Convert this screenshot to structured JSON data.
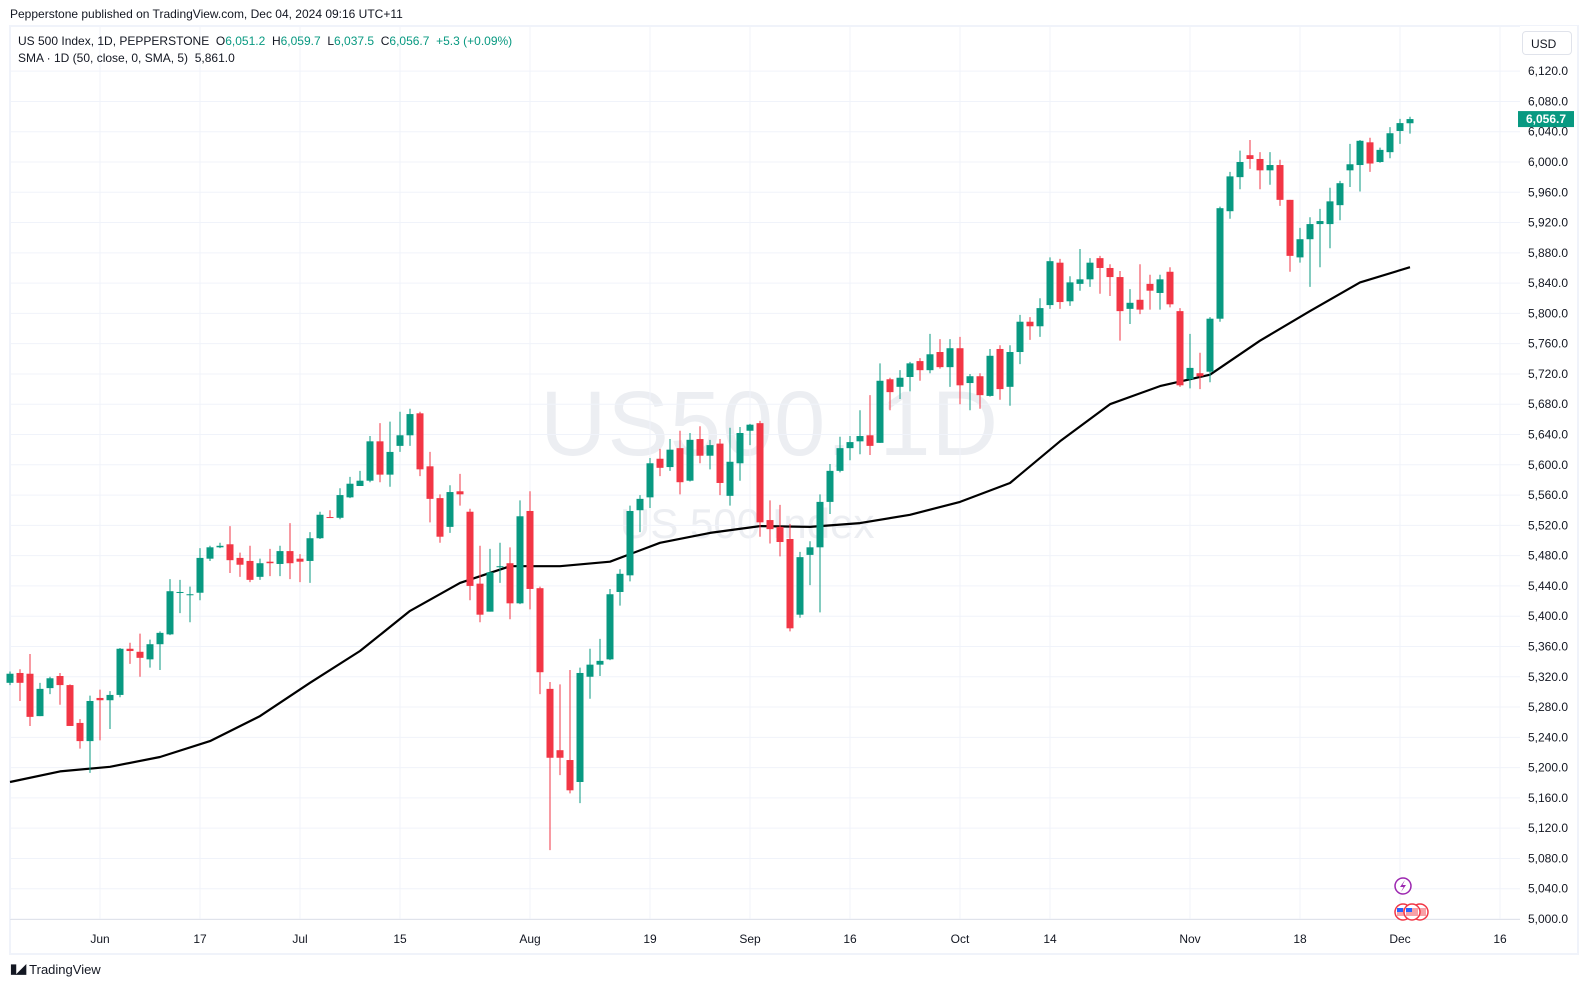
{
  "publish_line": "Pepperstone published on TradingView.com, Dec 04, 2024 09:16 UTC+11",
  "legend": {
    "symbol": "US 500 Index, 1D, PEPPERSTONE",
    "o_label": "O",
    "o": "6,051.2",
    "h_label": "H",
    "h": "6,059.7",
    "l_label": "L",
    "l": "6,037.5",
    "c_label": "C",
    "c": "6,056.7",
    "change": "+5.3 (+0.09%)",
    "sma_label": "SMA · 1D (50, close, 0, SMA, 5)",
    "sma_value": "5,861.0"
  },
  "currency_button": "USD",
  "watermark": {
    "main": "US500, 1D",
    "sub": "US 500 Index"
  },
  "brand": "TradingView",
  "colors": {
    "up": "#089981",
    "down": "#f23645",
    "sma": "#000000",
    "grid": "#f0f3fa",
    "last_price_bg": "#089981"
  },
  "chart_data": {
    "type": "candlestick",
    "title": "US 500 Index, 1D, PEPPERSTONE",
    "ylim": [
      5000,
      6140
    ],
    "y_ticks": [
      5000,
      5040,
      5080,
      5120,
      5160,
      5200,
      5240,
      5280,
      5320,
      5360,
      5400,
      5440,
      5480,
      5520,
      5560,
      5600,
      5640,
      5680,
      5720,
      5760,
      5800,
      5840,
      5880,
      5920,
      5960,
      6000,
      6040,
      6080,
      6120
    ],
    "y_tick_labels": [
      "5,000.0",
      "5,040.0",
      "5,080.0",
      "5,120.0",
      "5,160.0",
      "5,200.0",
      "5,240.0",
      "5,280.0",
      "5,320.0",
      "5,360.0",
      "5,400.0",
      "5,440.0",
      "5,480.0",
      "5,520.0",
      "5,560.0",
      "5,600.0",
      "5,640.0",
      "5,680.0",
      "5,720.0",
      "5,760.0",
      "5,800.0",
      "5,840.0",
      "5,880.0",
      "5,920.0",
      "5,960.0",
      "6,000.0",
      "6,040.0",
      "6,080.0",
      "6,120.0"
    ],
    "x_ticks": [
      {
        "label": "Jun",
        "date": "2024-06-03"
      },
      {
        "label": "17",
        "date": "2024-06-17"
      },
      {
        "label": "Jul",
        "date": "2024-07-01"
      },
      {
        "label": "15",
        "date": "2024-07-15"
      },
      {
        "label": "Aug",
        "date": "2024-08-01"
      },
      {
        "label": "19",
        "date": "2024-08-19"
      },
      {
        "label": "Sep",
        "date": "2024-09-02"
      },
      {
        "label": "16",
        "date": "2024-09-16"
      },
      {
        "label": "Oct",
        "date": "2024-10-01"
      },
      {
        "label": "14",
        "date": "2024-10-14"
      },
      {
        "label": "Nov",
        "date": "2024-11-01"
      },
      {
        "label": "18",
        "date": "2024-11-18"
      },
      {
        "label": "Dec",
        "date": "2024-12-02"
      },
      {
        "label": "16",
        "date": "2024-12-16"
      }
    ],
    "last_price": 6056.7,
    "last_price_label": "6,056.7",
    "grid": true,
    "candles_columns": [
      "date",
      "open",
      "high",
      "low",
      "close"
    ],
    "candles": [
      [
        "2024-05-21",
        5312,
        5327,
        5309,
        5324
      ],
      [
        "2024-05-22",
        5325,
        5330,
        5288,
        5312
      ],
      [
        "2024-05-23",
        5324,
        5350,
        5255,
        5267
      ],
      [
        "2024-05-24",
        5268,
        5312,
        5268,
        5304
      ],
      [
        "2024-05-27",
        5305,
        5320,
        5297,
        5318
      ],
      [
        "2024-05-28",
        5321,
        5325,
        5283,
        5309
      ],
      [
        "2024-05-29",
        5309,
        5310,
        5255,
        5255
      ],
      [
        "2024-05-30",
        5259,
        5264,
        5225,
        5235
      ],
      [
        "2024-05-31",
        5235,
        5295,
        5193,
        5288
      ],
      [
        "2024-06-03",
        5292,
        5303,
        5236,
        5289
      ],
      [
        "2024-06-04",
        5289,
        5301,
        5251,
        5296
      ],
      [
        "2024-06-05",
        5296,
        5358,
        5293,
        5357
      ],
      [
        "2024-06-06",
        5357,
        5365,
        5337,
        5354
      ],
      [
        "2024-06-07",
        5353,
        5377,
        5320,
        5345
      ],
      [
        "2024-06-10",
        5343,
        5369,
        5332,
        5363
      ],
      [
        "2024-06-11",
        5363,
        5380,
        5329,
        5378
      ],
      [
        "2024-06-12",
        5376,
        5449,
        5375,
        5433
      ],
      [
        "2024-06-13",
        5431,
        5448,
        5404,
        5432
      ],
      [
        "2024-06-14",
        5428,
        5439,
        5392,
        5429
      ],
      [
        "2024-06-17",
        5431,
        5490,
        5421,
        5477
      ],
      [
        "2024-06-18",
        5476,
        5493,
        5473,
        5491
      ],
      [
        "2024-06-19",
        5491,
        5497,
        5490,
        5493
      ],
      [
        "2024-06-20",
        5495,
        5519,
        5457,
        5474
      ],
      [
        "2024-06-21",
        5477,
        5484,
        5452,
        5468
      ],
      [
        "2024-06-24",
        5473,
        5493,
        5445,
        5448
      ],
      [
        "2024-06-25",
        5452,
        5476,
        5448,
        5470
      ],
      [
        "2024-06-26",
        5472,
        5489,
        5453,
        5470
      ],
      [
        "2024-06-27",
        5469,
        5493,
        5453,
        5486
      ],
      [
        "2024-06-28",
        5486,
        5523,
        5449,
        5470
      ],
      [
        "2024-07-01",
        5476,
        5482,
        5445,
        5472
      ],
      [
        "2024-07-02",
        5473,
        5511,
        5444,
        5503
      ],
      [
        "2024-07-03",
        5503,
        5538,
        5502,
        5534
      ],
      [
        "2024-07-04",
        5531,
        5540,
        5530,
        5530
      ],
      [
        "2024-07-05",
        5530,
        5569,
        5528,
        5560
      ],
      [
        "2024-07-08",
        5557,
        5584,
        5556,
        5575
      ],
      [
        "2024-07-09",
        5572,
        5592,
        5572,
        5579
      ],
      [
        "2024-07-10",
        5579,
        5638,
        5577,
        5631
      ],
      [
        "2024-07-11",
        5631,
        5655,
        5577,
        5587
      ],
      [
        "2024-07-12",
        5587,
        5657,
        5571,
        5617
      ],
      [
        "2024-07-15",
        5625,
        5670,
        5617,
        5639
      ],
      [
        "2024-07-16",
        5639,
        5674,
        5625,
        5667
      ],
      [
        "2024-07-17",
        5668,
        5670,
        5585,
        5594
      ],
      [
        "2024-07-18",
        5598,
        5617,
        5524,
        5555
      ],
      [
        "2024-07-19",
        5556,
        5561,
        5497,
        5505
      ],
      [
        "2024-07-22",
        5518,
        5573,
        5510,
        5564
      ],
      [
        "2024-07-23",
        5565,
        5588,
        5546,
        5561
      ],
      [
        "2024-07-24",
        5538,
        5542,
        5421,
        5440
      ],
      [
        "2024-07-25",
        5443,
        5493,
        5392,
        5402
      ],
      [
        "2024-07-26",
        5406,
        5489,
        5406,
        5458
      ],
      [
        "2024-07-29",
        5465,
        5497,
        5444,
        5466
      ],
      [
        "2024-07-30",
        5470,
        5491,
        5396,
        5417
      ],
      [
        "2024-07-31",
        5417,
        5553,
        5416,
        5532
      ],
      [
        "2024-08-01",
        5539,
        5565,
        5409,
        5436
      ],
      [
        "2024-08-02",
        5437,
        5439,
        5297,
        5326
      ],
      [
        "2024-08-05",
        5304,
        5313,
        5091,
        5213
      ],
      [
        "2024-08-06",
        5223,
        5310,
        5190,
        5213
      ],
      [
        "2024-08-07",
        5210,
        5329,
        5166,
        5170
      ],
      [
        "2024-08-08",
        5181,
        5332,
        5153,
        5325
      ],
      [
        "2024-08-09",
        5320,
        5357,
        5291,
        5336
      ],
      [
        "2024-08-12",
        5336,
        5370,
        5321,
        5341
      ],
      [
        "2024-08-13",
        5343,
        5436,
        5342,
        5429
      ],
      [
        "2024-08-14",
        5432,
        5462,
        5414,
        5456
      ],
      [
        "2024-08-15",
        5454,
        5546,
        5446,
        5539
      ],
      [
        "2024-08-16",
        5540,
        5560,
        5511,
        5555
      ],
      [
        "2024-08-19",
        5557,
        5609,
        5543,
        5602
      ],
      [
        "2024-08-20",
        5608,
        5621,
        5585,
        5596
      ],
      [
        "2024-08-21",
        5597,
        5634,
        5592,
        5620
      ],
      [
        "2024-08-22",
        5622,
        5645,
        5561,
        5577
      ],
      [
        "2024-08-23",
        5579,
        5642,
        5578,
        5633
      ],
      [
        "2024-08-26",
        5634,
        5651,
        5602,
        5612
      ],
      [
        "2024-08-27",
        5612,
        5633,
        5594,
        5626
      ],
      [
        "2024-08-28",
        5628,
        5634,
        5560,
        5576
      ],
      [
        "2024-08-29",
        5559,
        5649,
        5546,
        5604
      ],
      [
        "2024-08-30",
        5602,
        5650,
        5579,
        5642
      ],
      [
        "2024-09-02",
        5645,
        5654,
        5626,
        5653
      ],
      [
        "2024-09-03",
        5655,
        5658,
        5505,
        5524
      ],
      [
        "2024-09-04",
        5527,
        5553,
        5496,
        5515
      ],
      [
        "2024-09-05",
        5518,
        5547,
        5479,
        5498
      ],
      [
        "2024-09-06",
        5502,
        5522,
        5380,
        5384
      ],
      [
        "2024-09-09",
        5402,
        5485,
        5398,
        5478
      ],
      [
        "2024-09-10",
        5481,
        5499,
        5441,
        5491
      ],
      [
        "2024-09-11",
        5491,
        5561,
        5405,
        5551
      ],
      [
        "2024-09-12",
        5551,
        5601,
        5535,
        5592
      ],
      [
        "2024-09-13",
        5592,
        5637,
        5590,
        5622
      ],
      [
        "2024-09-16",
        5622,
        5638,
        5606,
        5630
      ],
      [
        "2024-09-17",
        5631,
        5672,
        5614,
        5638
      ],
      [
        "2024-09-18",
        5639,
        5692,
        5613,
        5625
      ],
      [
        "2024-09-19",
        5629,
        5734,
        5629,
        5711
      ],
      [
        "2024-09-20",
        5713,
        5715,
        5672,
        5696
      ],
      [
        "2024-09-23",
        5703,
        5725,
        5687,
        5715
      ],
      [
        "2024-09-24",
        5716,
        5736,
        5697,
        5734
      ],
      [
        "2024-09-25",
        5737,
        5741,
        5711,
        5725
      ],
      [
        "2024-09-26",
        5725,
        5773,
        5721,
        5746
      ],
      [
        "2024-09-27",
        5749,
        5766,
        5727,
        5729
      ],
      [
        "2024-09-30",
        5729,
        5766,
        5703,
        5754
      ],
      [
        "2024-10-01",
        5754,
        5769,
        5680,
        5705
      ],
      [
        "2024-10-02",
        5708,
        5720,
        5672,
        5717
      ],
      [
        "2024-10-03",
        5717,
        5721,
        5674,
        5692
      ],
      [
        "2024-10-04",
        5691,
        5753,
        5690,
        5744
      ],
      [
        "2024-10-07",
        5753,
        5758,
        5686,
        5700
      ],
      [
        "2024-10-08",
        5703,
        5758,
        5678,
        5749
      ],
      [
        "2024-10-09",
        5749,
        5798,
        5733,
        5789
      ],
      [
        "2024-10-10",
        5789,
        5795,
        5765,
        5783
      ],
      [
        "2024-10-11",
        5783,
        5820,
        5769,
        5807
      ],
      [
        "2024-10-14",
        5811,
        5874,
        5806,
        5869
      ],
      [
        "2024-10-15",
        5867,
        5872,
        5806,
        5815
      ],
      [
        "2024-10-16",
        5816,
        5849,
        5810,
        5841
      ],
      [
        "2024-10-17",
        5839,
        5885,
        5830,
        5845
      ],
      [
        "2024-10-18",
        5845,
        5873,
        5835,
        5867
      ],
      [
        "2024-10-21",
        5873,
        5876,
        5826,
        5860
      ],
      [
        "2024-10-22",
        5860,
        5865,
        5823,
        5848
      ],
      [
        "2024-10-23",
        5848,
        5856,
        5764,
        5803
      ],
      [
        "2024-10-24",
        5806,
        5832,
        5786,
        5814
      ],
      [
        "2024-10-25",
        5818,
        5865,
        5799,
        5805
      ],
      [
        "2024-10-28",
        5839,
        5851,
        5805,
        5830
      ],
      [
        "2024-10-29",
        5827,
        5851,
        5805,
        5845
      ],
      [
        "2024-10-30",
        5855,
        5861,
        5808,
        5812
      ],
      [
        "2024-10-31",
        5803,
        5807,
        5703,
        5705
      ],
      [
        "2024-11-01",
        5713,
        5773,
        5701,
        5728
      ],
      [
        "2024-11-04",
        5721,
        5748,
        5700,
        5717
      ],
      [
        "2024-11-05",
        5723,
        5795,
        5709,
        5793
      ],
      [
        "2024-11-06",
        5793,
        5941,
        5789,
        5939
      ],
      [
        "2024-11-07",
        5935,
        5987,
        5925,
        5981
      ],
      [
        "2024-11-08",
        5980,
        6015,
        5964,
        6000
      ],
      [
        "2024-11-11",
        6009,
        6029,
        5991,
        6004
      ],
      [
        "2024-11-12",
        6004,
        6013,
        5964,
        5989
      ],
      [
        "2024-11-13",
        5989,
        6013,
        5970,
        5996
      ],
      [
        "2024-11-14",
        5996,
        6003,
        5942,
        5950
      ],
      [
        "2024-11-15",
        5950,
        5950,
        5855,
        5876
      ],
      [
        "2024-11-18",
        5874,
        5913,
        5867,
        5898
      ],
      [
        "2024-11-19",
        5898,
        5927,
        5835,
        5918
      ],
      [
        "2024-11-20",
        5918,
        5938,
        5861,
        5922
      ],
      [
        "2024-11-21",
        5918,
        5966,
        5886,
        5948
      ],
      [
        "2024-11-22",
        5943,
        5975,
        5923,
        5972
      ],
      [
        "2024-11-25",
        5989,
        6024,
        5967,
        5997
      ],
      [
        "2024-11-26",
        5996,
        6029,
        5961,
        6028
      ],
      [
        "2024-11-27",
        6026,
        6032,
        5987,
        5998
      ],
      [
        "2024-11-28",
        6000,
        6019,
        5999,
        6016
      ],
      [
        "2024-11-29",
        6013,
        6046,
        6005,
        6038
      ],
      [
        "2024-12-02",
        6041,
        6057,
        6024,
        6051.4
      ],
      [
        "2024-12-03",
        6051.2,
        6059.7,
        6037.5,
        6056.7
      ]
    ],
    "series": [
      {
        "name": "SMA · 1D (50, close, 0, SMA, 5)",
        "type": "line",
        "points": [
          [
            "2024-05-21",
            5181
          ],
          [
            "2024-05-28",
            5195
          ],
          [
            "2024-06-04",
            5201
          ],
          [
            "2024-06-11",
            5214
          ],
          [
            "2024-06-18",
            5235
          ],
          [
            "2024-06-25",
            5268
          ],
          [
            "2024-07-02",
            5312
          ],
          [
            "2024-07-09",
            5354
          ],
          [
            "2024-07-16",
            5407
          ],
          [
            "2024-07-23",
            5444
          ],
          [
            "2024-07-30",
            5466
          ],
          [
            "2024-08-06",
            5466
          ],
          [
            "2024-08-13",
            5472
          ],
          [
            "2024-08-20",
            5497
          ],
          [
            "2024-08-27",
            5510
          ],
          [
            "2024-09-03",
            5519
          ],
          [
            "2024-09-10",
            5518
          ],
          [
            "2024-09-17",
            5523
          ],
          [
            "2024-09-24",
            5534
          ],
          [
            "2024-10-01",
            5551
          ],
          [
            "2024-10-08",
            5576
          ],
          [
            "2024-10-15",
            5631
          ],
          [
            "2024-10-22",
            5680
          ],
          [
            "2024-10-29",
            5704
          ],
          [
            "2024-11-05",
            5719
          ],
          [
            "2024-11-12",
            5764
          ],
          [
            "2024-11-19",
            5803
          ],
          [
            "2024-11-26",
            5841
          ],
          [
            "2024-12-03",
            5861.0
          ]
        ]
      }
    ]
  }
}
